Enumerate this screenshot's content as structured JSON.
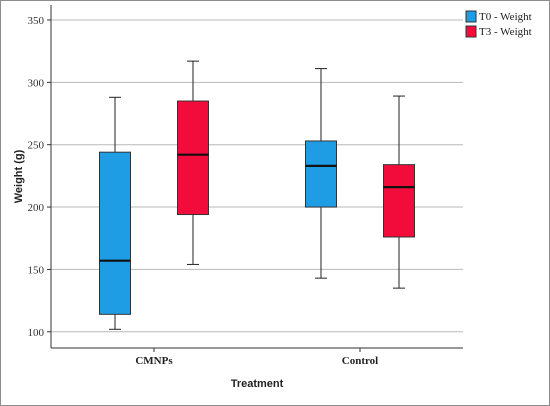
{
  "chart_data": {
    "type": "boxplot",
    "xlabel": "Treatment",
    "ylabel": "Weight (g)",
    "ylim": [
      87,
      362
    ],
    "yticks": [
      100,
      150,
      200,
      250,
      300,
      350
    ],
    "grid": true,
    "legend_position": "top-right",
    "categories": [
      "CMNPs",
      "Control"
    ],
    "series": [
      {
        "name": "T0 - Weight",
        "color": "#1f9de4",
        "boxes": [
          {
            "min": 102,
            "q1": 114,
            "median": 157,
            "q3": 244,
            "max": 288
          },
          {
            "min": 143,
            "q1": 200,
            "median": 233,
            "q3": 253,
            "max": 311
          }
        ]
      },
      {
        "name": "T3 - Weight",
        "color": "#f20c3c",
        "boxes": [
          {
            "min": 154,
            "q1": 194,
            "median": 242,
            "q3": 285,
            "max": 317
          },
          {
            "min": 135,
            "q1": 176,
            "median": 216,
            "q3": 234,
            "max": 289
          }
        ]
      }
    ]
  }
}
